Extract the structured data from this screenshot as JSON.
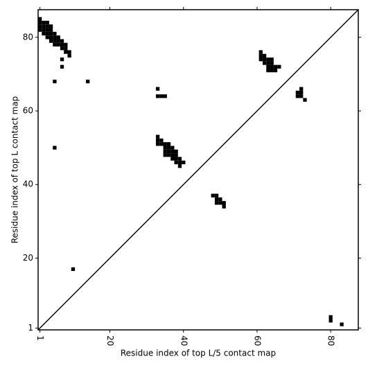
{
  "chart_data": {
    "type": "contact-map",
    "xlabel": "Residue index of top L/5 contact map",
    "ylabel": "Residue index of top L contact map",
    "xlim": [
      0.5,
      87.5
    ],
    "ylim": [
      0.5,
      87.5
    ],
    "xticks": [
      1,
      20,
      40,
      60,
      80
    ],
    "yticks": [
      1,
      20,
      40,
      60,
      80
    ],
    "color": "#000000",
    "x": [
      1,
      1,
      1,
      1,
      2,
      2,
      2,
      2,
      3,
      3,
      3,
      3,
      3,
      4,
      4,
      4,
      4,
      4,
      5,
      5,
      5,
      5,
      6,
      6,
      6,
      7,
      7,
      7,
      8,
      8,
      8,
      9,
      9,
      7,
      7,
      5,
      14,
      5,
      10,
      33,
      33,
      34,
      33,
      34,
      35,
      36,
      35,
      36,
      37,
      35,
      36,
      37,
      38,
      35,
      36,
      37,
      38,
      37,
      38,
      39,
      38,
      39,
      40,
      39,
      33,
      33,
      34,
      35,
      61,
      61,
      62,
      61,
      62,
      63,
      64,
      62,
      63,
      64,
      63,
      64,
      65,
      66,
      63,
      64,
      65,
      72,
      71,
      72,
      71,
      72,
      73,
      48,
      49,
      49,
      50,
      49,
      50,
      51,
      51,
      80,
      80,
      83
    ],
    "y": [
      82,
      83,
      84,
      85,
      81,
      82,
      83,
      84,
      80,
      81,
      82,
      83,
      84,
      79,
      80,
      81,
      82,
      83,
      78,
      79,
      80,
      81,
      78,
      79,
      80,
      77,
      78,
      79,
      76,
      77,
      78,
      75,
      76,
      74,
      72,
      68,
      68,
      50,
      17,
      53,
      52,
      52,
      51,
      51,
      51,
      51,
      50,
      50,
      50,
      49,
      49,
      49,
      49,
      48,
      48,
      48,
      48,
      47,
      47,
      47,
      46,
      46,
      46,
      45,
      66,
      64,
      64,
      64,
      76,
      75,
      75,
      74,
      74,
      74,
      74,
      73,
      73,
      73,
      72,
      72,
      72,
      72,
      71,
      71,
      71,
      66,
      65,
      65,
      64,
      64,
      63,
      37,
      37,
      36,
      36,
      35,
      35,
      35,
      34,
      4,
      3,
      2
    ]
  }
}
